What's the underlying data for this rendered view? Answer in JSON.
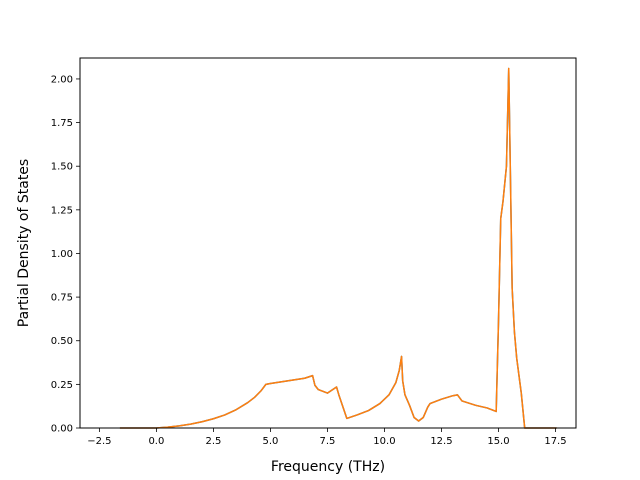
{
  "chart_data": {
    "type": "line",
    "xlabel": "Frequency (THz)",
    "ylabel": "Partial Density of States",
    "xlim": [
      -2.5,
      17.5
    ],
    "ylim": [
      0.0,
      2.12
    ],
    "x_ticks": [
      -2.5,
      0.0,
      2.5,
      5.0,
      7.5,
      10.0,
      12.5,
      15.0,
      17.5
    ],
    "x_tick_labels": [
      "−2.5",
      "0.0",
      "2.5",
      "5.0",
      "7.5",
      "10.0",
      "12.5",
      "15.0",
      "17.5"
    ],
    "y_ticks": [
      0.0,
      0.25,
      0.5,
      0.75,
      1.0,
      1.25,
      1.5,
      1.75,
      2.0
    ],
    "y_tick_labels": [
      "0.00",
      "0.25",
      "0.50",
      "0.75",
      "1.00",
      "1.25",
      "1.50",
      "1.75",
      "2.00"
    ],
    "grid": false,
    "series": [
      {
        "color": "#1f77b4",
        "x": [
          -1.6,
          0.0,
          0.5,
          1.0,
          1.5,
          2.0,
          2.5,
          3.0,
          3.5,
          4.0,
          4.3,
          4.6,
          4.8,
          5.0,
          5.5,
          6.0,
          6.5,
          6.85,
          6.95,
          7.1,
          7.5,
          7.9,
          8.0,
          8.35,
          8.8,
          9.3,
          9.8,
          10.2,
          10.5,
          10.65,
          10.75,
          10.8,
          10.9,
          11.1,
          11.3,
          11.5,
          11.7,
          11.9,
          12.0,
          12.5,
          13.0,
          13.2,
          13.4,
          14.0,
          14.5,
          14.9,
          15.0,
          15.1,
          15.2,
          15.35,
          15.45,
          15.5,
          15.6,
          15.7,
          15.8,
          16.0,
          16.15,
          16.3,
          17.0,
          17.55
        ],
        "y": [
          0.0,
          0.0,
          0.005,
          0.012,
          0.022,
          0.036,
          0.053,
          0.075,
          0.105,
          0.145,
          0.175,
          0.215,
          0.25,
          0.255,
          0.265,
          0.275,
          0.285,
          0.3,
          0.245,
          0.22,
          0.2,
          0.235,
          0.19,
          0.055,
          0.075,
          0.1,
          0.14,
          0.19,
          0.26,
          0.33,
          0.41,
          0.27,
          0.19,
          0.13,
          0.06,
          0.04,
          0.06,
          0.12,
          0.14,
          0.165,
          0.185,
          0.19,
          0.155,
          0.13,
          0.115,
          0.095,
          0.6,
          1.2,
          1.3,
          1.5,
          2.06,
          1.65,
          0.8,
          0.55,
          0.4,
          0.2,
          0.0,
          0.0,
          0.0,
          0.0
        ]
      },
      {
        "color": "#ff7f0e",
        "x": [
          -1.6,
          0.0,
          0.5,
          1.0,
          1.5,
          2.0,
          2.5,
          3.0,
          3.5,
          4.0,
          4.3,
          4.6,
          4.8,
          5.0,
          5.5,
          6.0,
          6.5,
          6.85,
          6.95,
          7.1,
          7.5,
          7.9,
          8.0,
          8.35,
          8.8,
          9.3,
          9.8,
          10.2,
          10.5,
          10.65,
          10.75,
          10.8,
          10.9,
          11.1,
          11.3,
          11.5,
          11.7,
          11.9,
          12.0,
          12.5,
          13.0,
          13.2,
          13.4,
          14.0,
          14.5,
          14.9,
          15.0,
          15.1,
          15.2,
          15.35,
          15.45,
          15.5,
          15.6,
          15.7,
          15.8,
          16.0,
          16.15,
          16.3,
          17.0,
          17.55
        ],
        "y": [
          0.0,
          0.0,
          0.005,
          0.012,
          0.022,
          0.036,
          0.053,
          0.075,
          0.105,
          0.145,
          0.175,
          0.215,
          0.25,
          0.255,
          0.265,
          0.275,
          0.285,
          0.3,
          0.245,
          0.22,
          0.2,
          0.235,
          0.19,
          0.055,
          0.075,
          0.1,
          0.14,
          0.19,
          0.26,
          0.33,
          0.41,
          0.27,
          0.19,
          0.13,
          0.06,
          0.04,
          0.06,
          0.12,
          0.14,
          0.165,
          0.185,
          0.19,
          0.155,
          0.13,
          0.115,
          0.095,
          0.6,
          1.2,
          1.3,
          1.5,
          2.06,
          1.65,
          0.8,
          0.55,
          0.4,
          0.2,
          0.0,
          0.0,
          0.0,
          0.0
        ]
      }
    ]
  }
}
